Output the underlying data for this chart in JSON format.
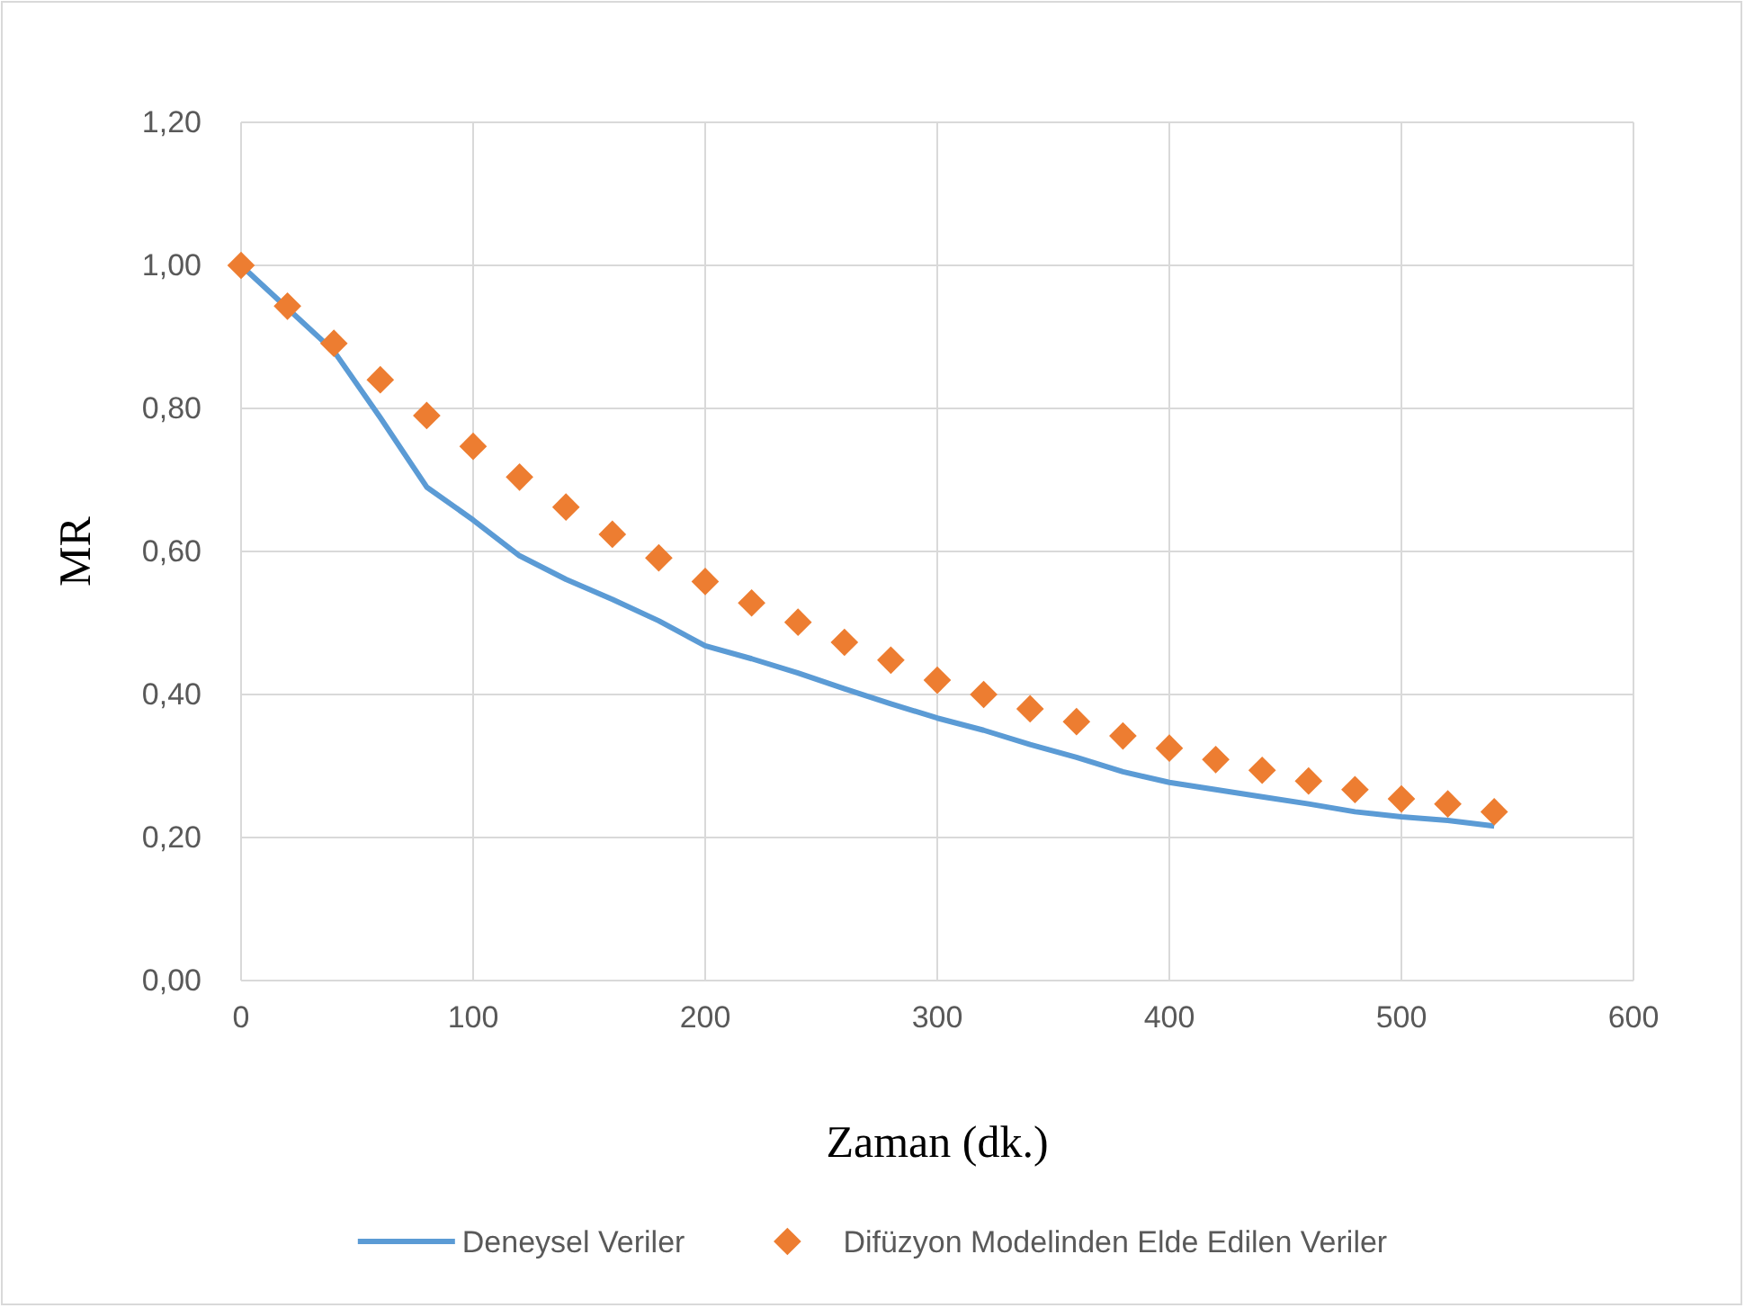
{
  "chart_data": {
    "type": "line",
    "xlabel": "Zaman (dk.)",
    "ylabel": "MR",
    "x": [
      0,
      20,
      40,
      60,
      80,
      100,
      120,
      140,
      160,
      180,
      200,
      220,
      240,
      260,
      280,
      300,
      320,
      340,
      360,
      380,
      400,
      420,
      440,
      460,
      480,
      500,
      520,
      540
    ],
    "series": [
      {
        "name": "Deneysel Veriler",
        "color": "#5b9bd5",
        "marker": "none",
        "values": [
          1.0,
          0.94,
          0.88,
          0.787,
          0.69,
          0.644,
          0.594,
          0.561,
          0.533,
          0.503,
          0.468,
          0.45,
          0.43,
          0.408,
          0.387,
          0.367,
          0.35,
          0.33,
          0.312,
          0.292,
          0.277,
          0.267,
          0.257,
          0.247,
          0.236,
          0.229,
          0.224,
          0.216
        ]
      },
      {
        "name": "Difüzyon Modelinden Elde Edilen Veriler",
        "color": "#ed7d31",
        "type": "scatter",
        "marker": "diamond",
        "values": [
          1.0,
          0.943,
          0.891,
          0.84,
          0.79,
          0.747,
          0.704,
          0.662,
          0.624,
          0.591,
          0.558,
          0.528,
          0.501,
          0.473,
          0.448,
          0.42,
          0.4,
          0.38,
          0.362,
          0.342,
          0.325,
          0.309,
          0.294,
          0.279,
          0.267,
          0.254,
          0.247,
          0.236
        ]
      }
    ],
    "xlim": [
      0,
      600
    ],
    "xticks": [
      0,
      100,
      200,
      300,
      400,
      500,
      600
    ],
    "ylim": [
      0,
      1.2
    ],
    "yticks": [
      {
        "value": 0,
        "label": "0,00"
      },
      {
        "value": 0.2,
        "label": "0,20"
      },
      {
        "value": 0.4,
        "label": "0,40"
      },
      {
        "value": 0.6,
        "label": "0,60"
      },
      {
        "value": 0.8,
        "label": "0,80"
      },
      {
        "value": 1.0,
        "label": "1,00"
      },
      {
        "value": 1.2,
        "label": "1,20"
      }
    ],
    "grid": true,
    "legend": "bottom"
  }
}
